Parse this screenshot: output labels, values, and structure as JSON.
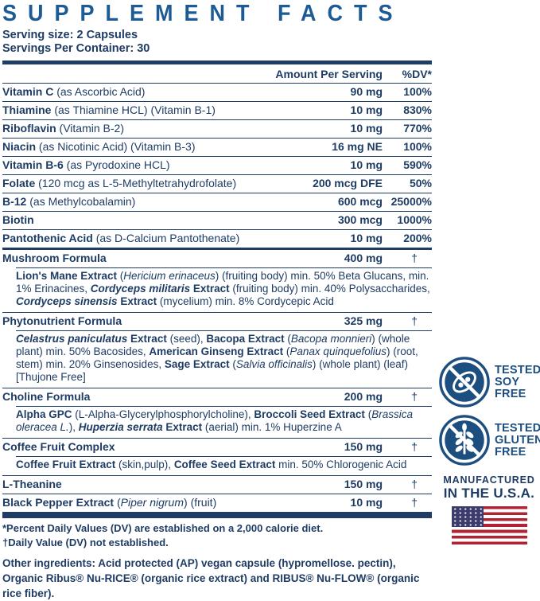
{
  "title": "SUPPLEMENT FACTS",
  "serving": {
    "size": "Serving size: 2 Capsules",
    "per_container": "Servings Per Container: 30"
  },
  "columns": {
    "amount": "Amount Per Serving",
    "dv": "%DV*"
  },
  "rows": [
    {
      "name": [
        {
          "t": "Vitamin C",
          "b": true
        },
        {
          "t": " (as Ascorbic Acid)"
        }
      ],
      "amount": "90 mg",
      "dv": "100%"
    },
    {
      "name": [
        {
          "t": "Thiamine",
          "b": true
        },
        {
          "t": " (as Thiamine HCL) (Vitamin B-1)"
        }
      ],
      "amount": "10 mg",
      "dv": "830%"
    },
    {
      "name": [
        {
          "t": "Riboflavin",
          "b": true
        },
        {
          "t": " (Vitamin B-2)"
        }
      ],
      "amount": "10 mg",
      "dv": "770%"
    },
    {
      "name": [
        {
          "t": "Niacin",
          "b": true
        },
        {
          "t": " (as Nicotinic Acid) (Vitamin B-3)"
        }
      ],
      "amount": "16 mg NE",
      "dv": "100%"
    },
    {
      "name": [
        {
          "t": "Vitamin B-6",
          "b": true
        },
        {
          "t": " (as Pyrodoxine HCL)"
        }
      ],
      "amount": "10 mg",
      "dv": "590%"
    },
    {
      "name": [
        {
          "t": "Folate",
          "b": true
        },
        {
          "t": " (120 mcg as L-5-Methyltetrahydrofolate)"
        }
      ],
      "amount": "200 mcg DFE",
      "dv": "50%"
    },
    {
      "name": [
        {
          "t": "B-12",
          "b": true
        },
        {
          "t": " (as Methylcobalamin)"
        }
      ],
      "amount": "600 mcg",
      "dv": "25000%"
    },
    {
      "name": [
        {
          "t": "Biotin",
          "b": true
        }
      ],
      "amount": "300 mcg",
      "dv": "1000%"
    },
    {
      "name": [
        {
          "t": "Pantothenic Acid",
          "b": true
        },
        {
          "t": " (as D-Calcium Pantothenate)"
        }
      ],
      "amount": "10 mg",
      "dv": "200%"
    }
  ],
  "formulas": [
    {
      "name": [
        {
          "t": "Mushroom Formula",
          "b": true
        }
      ],
      "amount": "400 mg",
      "dv": "†",
      "sub": [
        {
          "t": "Lion's Mane Extract",
          "b": true
        },
        {
          "t": " ("
        },
        {
          "t": "Hericium erinaceus",
          "i": true
        },
        {
          "t": ") (fruiting body) min. 50% Beta Glucans, min. 1% Erinacines, "
        },
        {
          "t": "Cordyceps militaris",
          "b": true,
          "i": true
        },
        {
          "t": " Extract",
          "b": true
        },
        {
          "t": " (fruiting body) min. 40% Polysaccharides, "
        },
        {
          "t": "Cordyceps sinensis",
          "b": true,
          "i": true
        },
        {
          "t": " Extract",
          "b": true
        },
        {
          "t": " (mycelium) min. 8% Cordycepic Acid"
        }
      ]
    },
    {
      "name": [
        {
          "t": "Phytonutrient Formula",
          "b": true
        }
      ],
      "amount": "325 mg",
      "dv": "†",
      "sub": [
        {
          "t": "Celastrus paniculatus",
          "b": true,
          "i": true
        },
        {
          "t": " Extract",
          "b": true
        },
        {
          "t": " (seed), "
        },
        {
          "t": "Bacopa Extract",
          "b": true
        },
        {
          "t": " ("
        },
        {
          "t": "Bacopa monnieri",
          "i": true
        },
        {
          "t": ") (whole plant) min. 50% Bacosides, "
        },
        {
          "t": "American Ginseng Extract",
          "b": true
        },
        {
          "t": " ("
        },
        {
          "t": "Panax quinquefolius",
          "i": true
        },
        {
          "t": ") (root, stem) min. 20% Ginsenosides, "
        },
        {
          "t": "Sage Extract",
          "b": true
        },
        {
          "t": " ("
        },
        {
          "t": "Salvia officinalis",
          "i": true
        },
        {
          "t": ") (whole plant) (leaf) [Thujone Free]"
        }
      ]
    },
    {
      "name": [
        {
          "t": "Choline Formula",
          "b": true
        }
      ],
      "amount": "200 mg",
      "dv": "†",
      "sub": [
        {
          "t": "Alpha GPC",
          "b": true
        },
        {
          "t": " (L-Alpha-Glycerylphosphorylcholine), "
        },
        {
          "t": "Broccoli Seed Extract",
          "b": true
        },
        {
          "t": " ("
        },
        {
          "t": "Brassica oleracea L.",
          "i": true
        },
        {
          "t": "), "
        },
        {
          "t": "Huperzia serrata",
          "b": true,
          "i": true
        },
        {
          "t": " Extract",
          "b": true
        },
        {
          "t": " (aerial) min. 1% Huperzine A"
        }
      ]
    },
    {
      "name": [
        {
          "t": "Coffee Fruit Complex",
          "b": true
        }
      ],
      "amount": "150 mg",
      "dv": "†",
      "sub": [
        {
          "t": "Coffee Fruit Extract",
          "b": true
        },
        {
          "t": " (skin,pulp), "
        },
        {
          "t": "Coffee Seed Extract",
          "b": true
        },
        {
          "t": " min. 50% Chlorogenic Acid"
        }
      ]
    },
    {
      "name": [
        {
          "t": "L-Theanine",
          "b": true
        }
      ],
      "amount": "150 mg",
      "dv": "†",
      "sub": null
    },
    {
      "name": [
        {
          "t": "Black Pepper Extract",
          "b": true
        },
        {
          "t": " ("
        },
        {
          "t": "Piper nigrum",
          "i": true
        },
        {
          "t": ") (fruit)"
        }
      ],
      "amount": "10 mg",
      "dv": "†",
      "sub": null
    }
  ],
  "footnotes": [
    "*Percent Daily Values (DV) are established on a 2,000 calorie diet.",
    "†Daily Value (DV) not established."
  ],
  "other_ingredients": "Other ingredients: Acid protected (AP) vegan capsule (hypromellose. pectin), Organic Ribus® Nu-RICE® (organic rice extract) and RIBUS® Nu-FLOW® (organic rice fiber).",
  "badges": [
    {
      "icon": "soy-crossed-icon",
      "lines": [
        "TESTED",
        "SOY",
        "FREE"
      ]
    },
    {
      "icon": "wheat-crossed-icon",
      "lines": [
        "TESTED",
        "GLUTEN",
        "FREE"
      ]
    }
  ],
  "made_in": {
    "line1": "MANUFACTURED",
    "line2": "IN THE U.S.A."
  },
  "colors": {
    "title_blue": "#1d5b94",
    "navy": "#1e3c64",
    "badge_navy": "#1d4e80",
    "flag_red": "#b12233",
    "flag_blue": "#3c3b6e"
  }
}
